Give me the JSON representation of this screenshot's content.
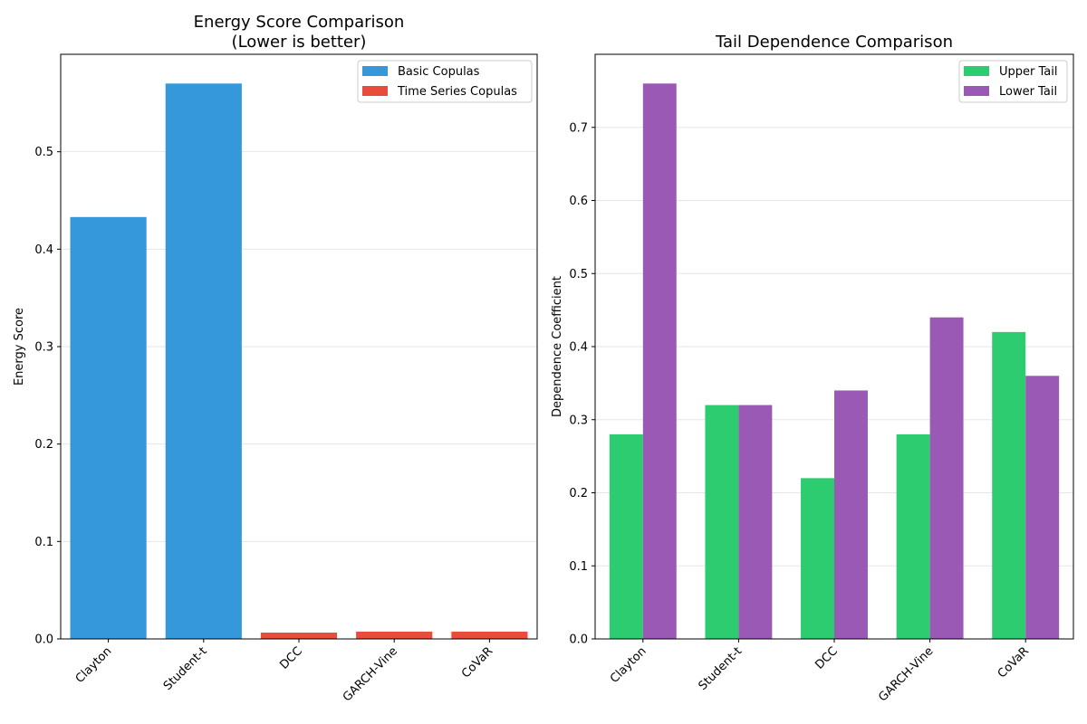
{
  "chart_data": [
    {
      "type": "bar",
      "title": [
        "Energy Score Comparison",
        "(Lower is better)"
      ],
      "xlabel": "",
      "ylabel": "Energy Score",
      "ylim": [
        0,
        0.6
      ],
      "yticks": [
        "0.0",
        "0.1",
        "0.2",
        "0.3",
        "0.4",
        "0.5"
      ],
      "grid": true,
      "legend_position": "top-right",
      "categories": [
        "Clayton",
        "Student-t",
        "DCC",
        "GARCH-Vine",
        "CoVaR"
      ],
      "values": [
        0.433,
        0.57,
        0.0065,
        0.0075,
        0.0075
      ],
      "bar_groups": [
        "Basic Copulas",
        "Basic Copulas",
        "Time Series Copulas",
        "Time Series Copulas",
        "Time Series Copulas"
      ],
      "series": [
        {
          "name": "Basic Copulas",
          "color": "#3498db"
        },
        {
          "name": "Time Series Copulas",
          "color": "#e74c3c"
        }
      ]
    },
    {
      "type": "bar",
      "title": [
        "Tail Dependence Comparison"
      ],
      "xlabel": "",
      "ylabel": "Dependence Coefficient",
      "ylim": [
        0,
        0.8
      ],
      "yticks": [
        "0.0",
        "0.1",
        "0.2",
        "0.3",
        "0.4",
        "0.5",
        "0.6",
        "0.7"
      ],
      "grid": true,
      "legend_position": "top-right",
      "categories": [
        "Clayton",
        "Student-t",
        "DCC",
        "GARCH-Vine",
        "CoVaR"
      ],
      "series": [
        {
          "name": "Upper Tail",
          "color": "#2ecc71",
          "values": [
            0.28,
            0.32,
            0.22,
            0.28,
            0.42
          ]
        },
        {
          "name": "Lower Tail",
          "color": "#9b59b6",
          "values": [
            0.76,
            0.32,
            0.34,
            0.44,
            0.36
          ]
        }
      ]
    }
  ]
}
